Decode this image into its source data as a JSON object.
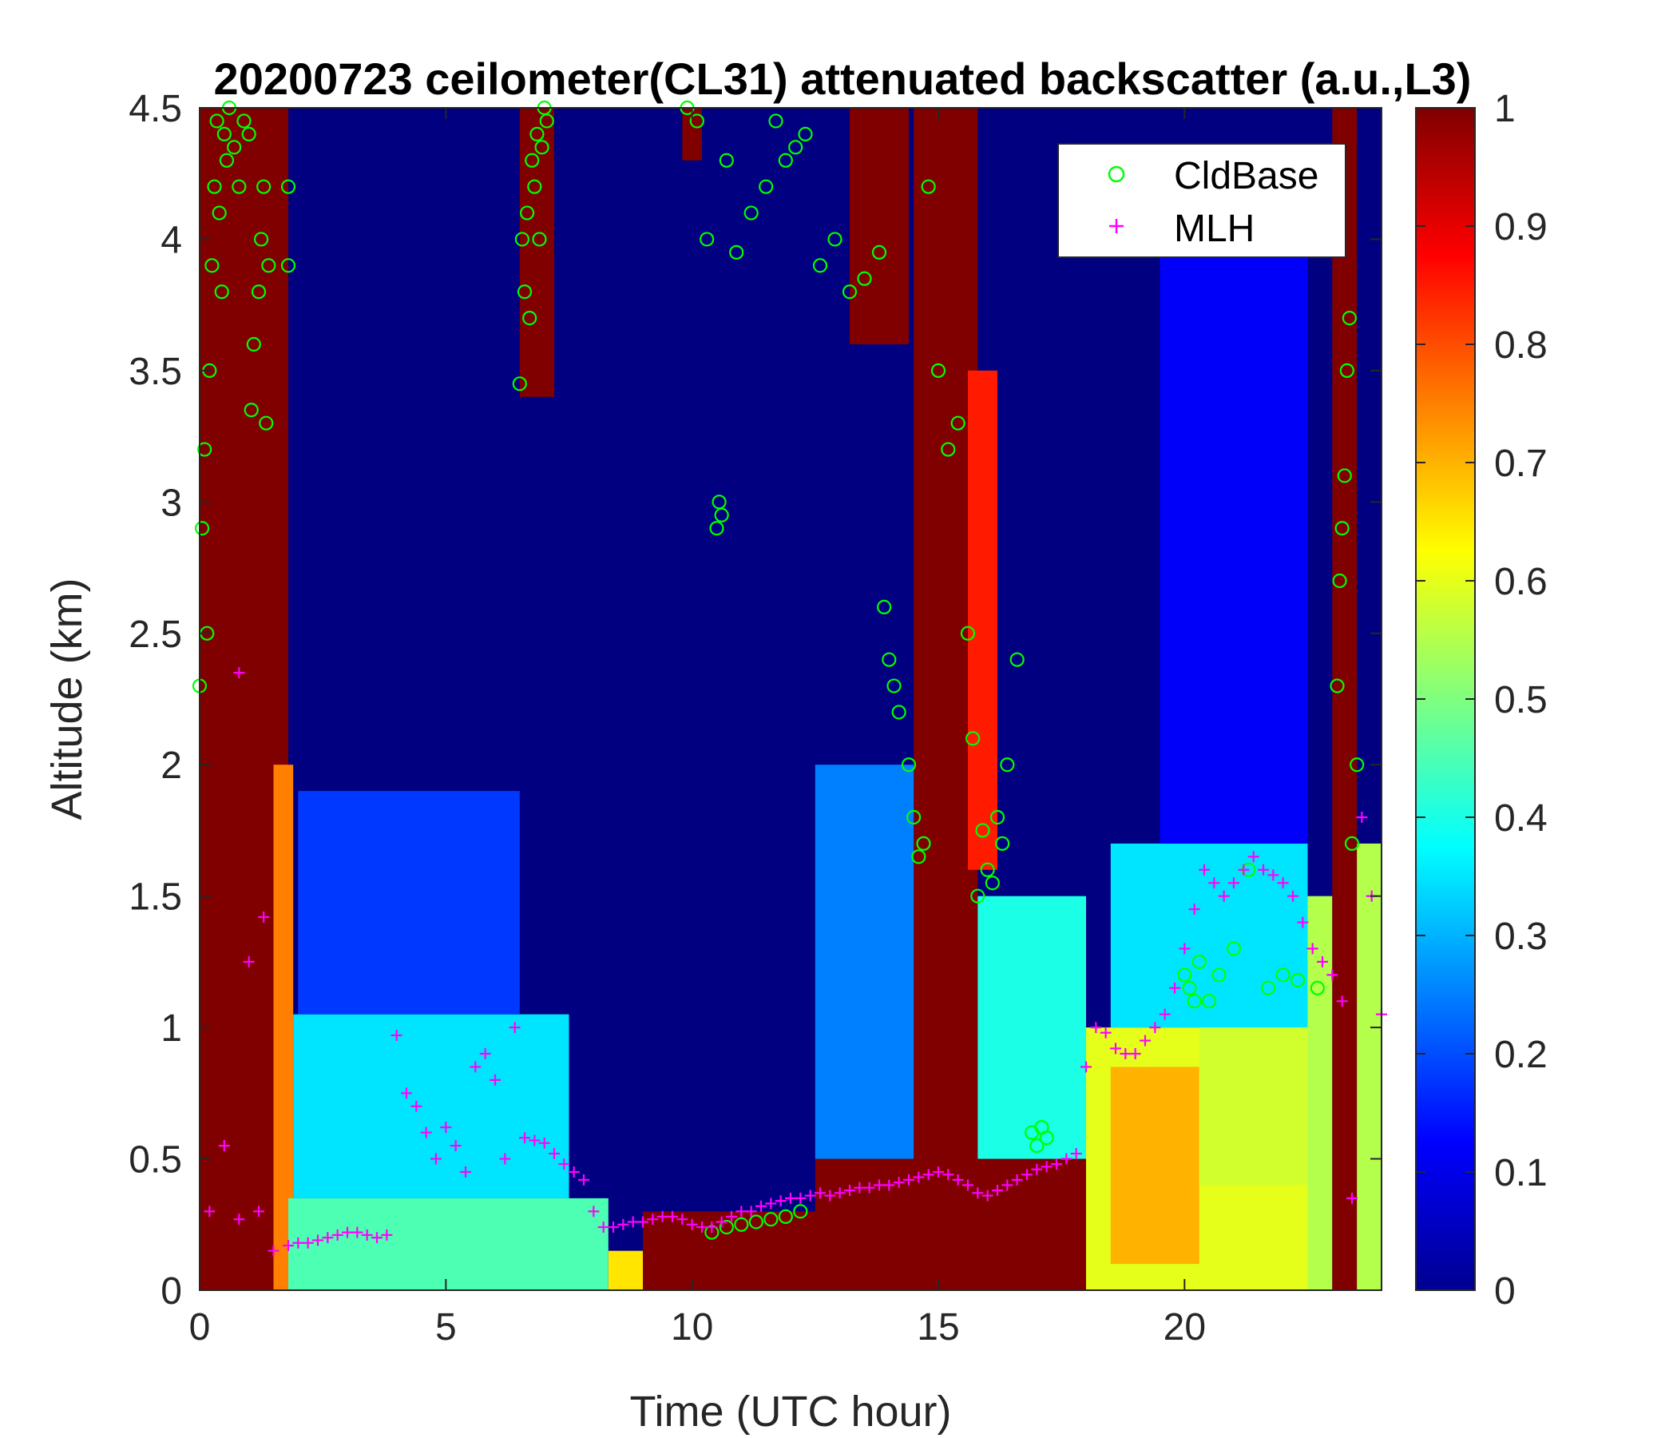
{
  "chart_data": {
    "type": "heatmap",
    "title": "20200723 ceilometer(CL31) attenuated backscatter (a.u.,L3)",
    "xlabel": "Time (UTC hour)",
    "ylabel": "Altitude (km)",
    "xlim": [
      0,
      24
    ],
    "ylim": [
      0,
      4.5
    ],
    "x_ticks": [
      0,
      5,
      10,
      15,
      20
    ],
    "x_tick_labels": [
      "0",
      "5",
      "10",
      "15",
      "20"
    ],
    "y_ticks": [
      0,
      0.5,
      1,
      1.5,
      2,
      2.5,
      3,
      3.5,
      4,
      4.5
    ],
    "y_tick_labels": [
      "0",
      "0.5",
      "1",
      "1.5",
      "2",
      "2.5",
      "3",
      "3.5",
      "4",
      "4.5"
    ],
    "colorbar": {
      "colormap": "jet",
      "range": [
        0,
        1
      ],
      "ticks": [
        0,
        0.1,
        0.2,
        0.3,
        0.4,
        0.5,
        0.6,
        0.7,
        0.8,
        0.9,
        1
      ],
      "tick_labels": [
        "0",
        "0.1",
        "0.2",
        "0.3",
        "0.4",
        "0.5",
        "0.6",
        "0.7",
        "0.8",
        "0.9",
        "1"
      ]
    },
    "legend": {
      "placement": "top-right",
      "entries": [
        {
          "label": "CldBase",
          "marker": "circle",
          "color": "#00ff00"
        },
        {
          "label": "MLH",
          "marker": "plus",
          "color": "#ff00ff"
        }
      ]
    },
    "background_value": 0.0,
    "heatmap_regions": [
      {
        "x": [
          0.0,
          1.8
        ],
        "y": [
          0,
          4.5
        ],
        "value": 1.0
      },
      {
        "x": [
          1.5,
          1.9
        ],
        "y": [
          0,
          2.0
        ],
        "value": 0.75
      },
      {
        "x": [
          1.8,
          8.3
        ],
        "y": [
          0,
          0.35
        ],
        "value": 0.45
      },
      {
        "x": [
          1.9,
          7.5
        ],
        "y": [
          0.35,
          1.05
        ],
        "value": 0.35
      },
      {
        "x": [
          2.0,
          6.5
        ],
        "y": [
          1.05,
          1.9
        ],
        "value": 0.18
      },
      {
        "x": [
          8.3,
          12.5
        ],
        "y": [
          0,
          0.15
        ],
        "value": 0.65
      },
      {
        "x": [
          9.0,
          18.0
        ],
        "y": [
          0,
          0.3
        ],
        "value": 1.0
      },
      {
        "x": [
          12.5,
          18.0
        ],
        "y": [
          0.3,
          0.5
        ],
        "value": 1.0
      },
      {
        "x": [
          14.5,
          15.8
        ],
        "y": [
          0.5,
          4.5
        ],
        "value": 1.0
      },
      {
        "x": [
          15.6,
          16.2
        ],
        "y": [
          1.6,
          3.5
        ],
        "value": 0.85
      },
      {
        "x": [
          12.5,
          14.5
        ],
        "y": [
          0.5,
          2.0
        ],
        "value": 0.25
      },
      {
        "x": [
          15.8,
          18.0
        ],
        "y": [
          0.5,
          1.5
        ],
        "value": 0.4
      },
      {
        "x": [
          18.0,
          22.5
        ],
        "y": [
          0,
          1.0
        ],
        "value": 0.6
      },
      {
        "x": [
          18.5,
          20.3
        ],
        "y": [
          0.1,
          0.85
        ],
        "value": 0.7
      },
      {
        "x": [
          20.3,
          22.5
        ],
        "y": [
          0.4,
          1.25
        ],
        "value": 0.58
      },
      {
        "x": [
          18.5,
          22.5
        ],
        "y": [
          1.0,
          1.7
        ],
        "value": 0.35
      },
      {
        "x": [
          19.5,
          22.5
        ],
        "y": [
          1.7,
          4.0
        ],
        "value": 0.12
      },
      {
        "x": [
          22.5,
          23.0
        ],
        "y": [
          0,
          1.5
        ],
        "value": 0.55
      },
      {
        "x": [
          23.0,
          23.5
        ],
        "y": [
          0,
          4.5
        ],
        "value": 1.0
      },
      {
        "x": [
          23.5,
          24.0
        ],
        "y": [
          0,
          1.7
        ],
        "value": 0.55
      },
      {
        "x": [
          6.5,
          7.2
        ],
        "y": [
          3.4,
          4.5
        ],
        "value": 1.0
      },
      {
        "x": [
          9.8,
          10.2
        ],
        "y": [
          4.3,
          4.5
        ],
        "value": 1.0
      },
      {
        "x": [
          13.2,
          14.4
        ],
        "y": [
          3.6,
          4.5
        ],
        "value": 1.0
      }
    ],
    "series": [
      {
        "name": "CldBase",
        "marker": "circle",
        "color": "#00ff00",
        "x": [
          0.0,
          0.05,
          0.1,
          0.15,
          0.2,
          0.25,
          0.3,
          0.35,
          0.4,
          0.45,
          0.5,
          0.55,
          0.6,
          0.7,
          0.8,
          0.9,
          1.0,
          1.05,
          1.1,
          1.2,
          1.25,
          1.3,
          1.35,
          1.4,
          1.8,
          1.8,
          6.5,
          6.55,
          6.6,
          6.65,
          6.7,
          6.75,
          6.8,
          6.85,
          6.9,
          6.95,
          7.0,
          7.05,
          10.5,
          10.55,
          10.6,
          9.9,
          10.1,
          10.3,
          10.7,
          10.9,
          11.2,
          11.5,
          11.7,
          11.9,
          12.1,
          12.3,
          12.6,
          12.9,
          13.2,
          13.5,
          13.8,
          13.9,
          14.0,
          14.1,
          14.2,
          14.4,
          14.5,
          14.6,
          14.7,
          14.8,
          15.0,
          15.2,
          15.4,
          15.6,
          15.7,
          15.8,
          15.9,
          16.0,
          16.1,
          16.2,
          16.3,
          16.4,
          16.6,
          16.9,
          17.0,
          17.1,
          17.2,
          10.4,
          10.7,
          11.0,
          11.3,
          11.6,
          11.9,
          12.2,
          20.0,
          20.1,
          20.2,
          20.3,
          20.5,
          20.7,
          21.0,
          21.3,
          21.7,
          22.0,
          22.3,
          22.7,
          23.1,
          23.15,
          23.2,
          23.25,
          23.3,
          23.35,
          23.4,
          23.5
        ],
        "y": [
          2.3,
          2.9,
          3.2,
          2.5,
          3.5,
          3.9,
          4.2,
          4.45,
          4.1,
          3.8,
          4.4,
          4.3,
          4.5,
          4.35,
          4.2,
          4.45,
          4.4,
          3.35,
          3.6,
          3.8,
          4.0,
          4.2,
          3.3,
          3.9,
          4.2,
          3.9,
          3.45,
          4.0,
          3.8,
          4.1,
          3.7,
          4.3,
          4.2,
          4.4,
          4.0,
          4.35,
          4.5,
          4.45,
          2.9,
          3.0,
          2.95,
          4.5,
          4.45,
          4.0,
          4.3,
          3.95,
          4.1,
          4.2,
          4.45,
          4.3,
          4.35,
          4.4,
          3.9,
          4.0,
          3.8,
          3.85,
          3.95,
          2.6,
          2.4,
          2.3,
          2.2,
          2.0,
          1.8,
          1.65,
          1.7,
          4.2,
          3.5,
          3.2,
          3.3,
          2.5,
          2.1,
          1.5,
          1.75,
          1.6,
          1.55,
          1.8,
          1.7,
          2.0,
          2.4,
          0.6,
          0.55,
          0.62,
          0.58,
          0.22,
          0.24,
          0.25,
          0.26,
          0.27,
          0.28,
          0.3,
          1.2,
          1.15,
          1.1,
          1.25,
          1.1,
          1.2,
          1.3,
          1.6,
          1.15,
          1.2,
          1.18,
          1.15,
          2.3,
          2.7,
          2.9,
          3.1,
          3.5,
          3.7,
          1.7,
          2.0
        ],
        "max_x": 24
      },
      {
        "name": "MLH",
        "marker": "plus",
        "color": "#ff00ff",
        "x": [
          0.5,
          0.8,
          1.0,
          1.2,
          1.5,
          1.8,
          2.0,
          2.2,
          2.4,
          2.6,
          2.8,
          3.0,
          3.2,
          3.4,
          3.6,
          3.8,
          4.0,
          4.2,
          4.4,
          4.6,
          4.8,
          5.0,
          5.2,
          5.4,
          5.6,
          5.8,
          6.0,
          6.2,
          6.4,
          6.6,
          6.8,
          7.0,
          7.2,
          7.4,
          7.6,
          7.8,
          8.0,
          8.2,
          8.4,
          8.6,
          8.8,
          9.0,
          9.2,
          9.4,
          9.6,
          9.8,
          10.0,
          10.2,
          10.4,
          10.6,
          10.8,
          11.0,
          11.2,
          11.4,
          11.6,
          11.8,
          12.0,
          12.2,
          12.4,
          12.6,
          12.8,
          13.0,
          13.2,
          13.4,
          13.6,
          13.8,
          14.0,
          14.2,
          14.4,
          14.6,
          14.8,
          15.0,
          15.2,
          15.4,
          15.6,
          15.8,
          16.0,
          16.2,
          16.4,
          16.6,
          16.8,
          17.0,
          17.2,
          17.4,
          17.6,
          17.8,
          18.0,
          18.2,
          18.4,
          18.6,
          18.8,
          19.0,
          19.2,
          19.4,
          19.6,
          19.8,
          20.0,
          20.2,
          20.4,
          20.6,
          20.8,
          21.0,
          21.2,
          21.4,
          21.6,
          21.8,
          22.0,
          22.2,
          22.4,
          22.6,
          22.8,
          23.0,
          23.2,
          23.4,
          23.6,
          23.8,
          24.0,
          0.8,
          1.3,
          0.5,
          0.2
        ],
        "y": [
          0.55,
          2.35,
          1.25,
          0.3,
          0.15,
          0.17,
          0.18,
          0.18,
          0.19,
          0.2,
          0.21,
          0.22,
          0.22,
          0.21,
          0.2,
          0.21,
          0.97,
          0.75,
          0.7,
          0.6,
          0.5,
          0.62,
          0.55,
          0.45,
          0.85,
          0.9,
          0.8,
          0.5,
          1.0,
          0.58,
          0.57,
          0.56,
          0.52,
          0.48,
          0.45,
          0.42,
          0.3,
          0.24,
          0.24,
          0.25,
          0.26,
          0.26,
          0.27,
          0.28,
          0.28,
          0.27,
          0.25,
          0.24,
          0.24,
          0.26,
          0.28,
          0.3,
          0.3,
          0.32,
          0.33,
          0.34,
          0.35,
          0.35,
          0.36,
          0.37,
          0.36,
          0.37,
          0.38,
          0.39,
          0.39,
          0.4,
          0.4,
          0.41,
          0.42,
          0.43,
          0.44,
          0.45,
          0.44,
          0.42,
          0.4,
          0.37,
          0.36,
          0.38,
          0.4,
          0.42,
          0.44,
          0.46,
          0.47,
          0.48,
          0.5,
          0.52,
          0.85,
          1.0,
          0.98,
          0.92,
          0.9,
          0.9,
          0.95,
          1.0,
          1.05,
          1.15,
          1.3,
          1.45,
          1.6,
          1.55,
          1.5,
          1.55,
          1.6,
          1.65,
          1.6,
          1.58,
          1.55,
          1.5,
          1.4,
          1.3,
          1.25,
          1.2,
          1.1,
          0.35,
          1.8,
          1.5,
          1.05,
          0.27,
          1.42,
          0.55,
          0.3
        ]
      }
    ]
  }
}
